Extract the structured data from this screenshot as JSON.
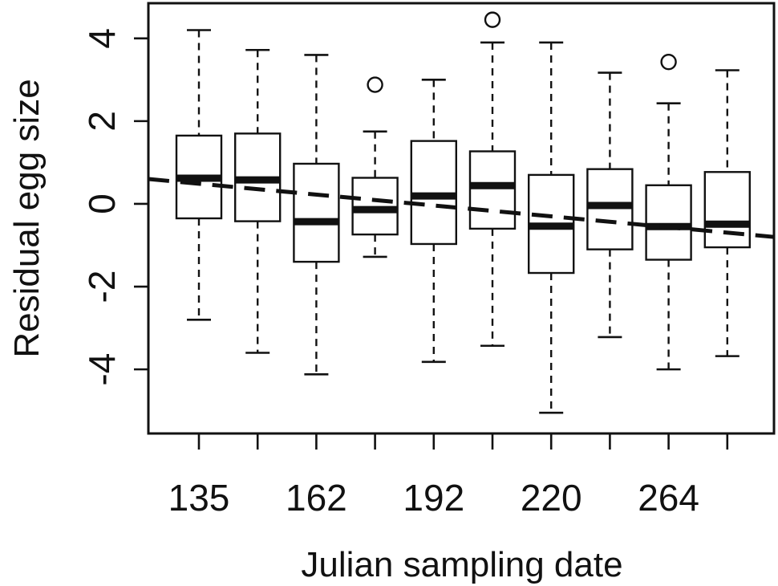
{
  "chart_data": {
    "type": "boxplot",
    "xlabel": "Julian sampling date",
    "ylabel": "Residual egg size",
    "ylim": [
      -5.55,
      4.85
    ],
    "yticks": [
      -4,
      -2,
      0,
      2,
      4
    ],
    "ytick_labels": [
      "-4",
      "-2",
      "0",
      "2",
      "4"
    ],
    "grid": false,
    "boxes": [
      {
        "label": "135",
        "whisker_low": -2.8,
        "q1": -0.35,
        "median": 0.62,
        "q3": 1.65,
        "whisker_high": 4.2,
        "outliers": []
      },
      {
        "label": "",
        "whisker_low": -3.6,
        "q1": -0.42,
        "median": 0.58,
        "q3": 1.7,
        "whisker_high": 3.72,
        "outliers": []
      },
      {
        "label": "162",
        "whisker_low": -4.12,
        "q1": -1.4,
        "median": -0.43,
        "q3": 0.97,
        "whisker_high": 3.6,
        "outliers": []
      },
      {
        "label": "",
        "whisker_low": -1.28,
        "q1": -0.74,
        "median": -0.14,
        "q3": 0.63,
        "whisker_high": 1.75,
        "outliers": [
          2.88
        ]
      },
      {
        "label": "192",
        "whisker_low": -3.82,
        "q1": -0.97,
        "median": 0.19,
        "q3": 1.52,
        "whisker_high": 3.0,
        "outliers": []
      },
      {
        "label": "",
        "whisker_low": -3.43,
        "q1": -0.6,
        "median": 0.44,
        "q3": 1.27,
        "whisker_high": 3.9,
        "outliers": [
          4.45
        ]
      },
      {
        "label": "220",
        "whisker_low": -5.05,
        "q1": -1.67,
        "median": -0.54,
        "q3": 0.7,
        "whisker_high": 3.9,
        "outliers": []
      },
      {
        "label": "",
        "whisker_low": -3.22,
        "q1": -1.1,
        "median": -0.04,
        "q3": 0.84,
        "whisker_high": 3.17,
        "outliers": []
      },
      {
        "label": "264",
        "whisker_low": -4.0,
        "q1": -1.35,
        "median": -0.55,
        "q3": 0.45,
        "whisker_high": 2.43,
        "outliers": [
          3.43
        ]
      },
      {
        "label": "",
        "whisker_low": -3.68,
        "q1": -1.05,
        "median": -0.49,
        "q3": 0.77,
        "whisker_high": 3.23,
        "outliers": []
      }
    ],
    "trend_line": {
      "style": "dashed",
      "start": 0.6,
      "end": -0.8
    }
  }
}
